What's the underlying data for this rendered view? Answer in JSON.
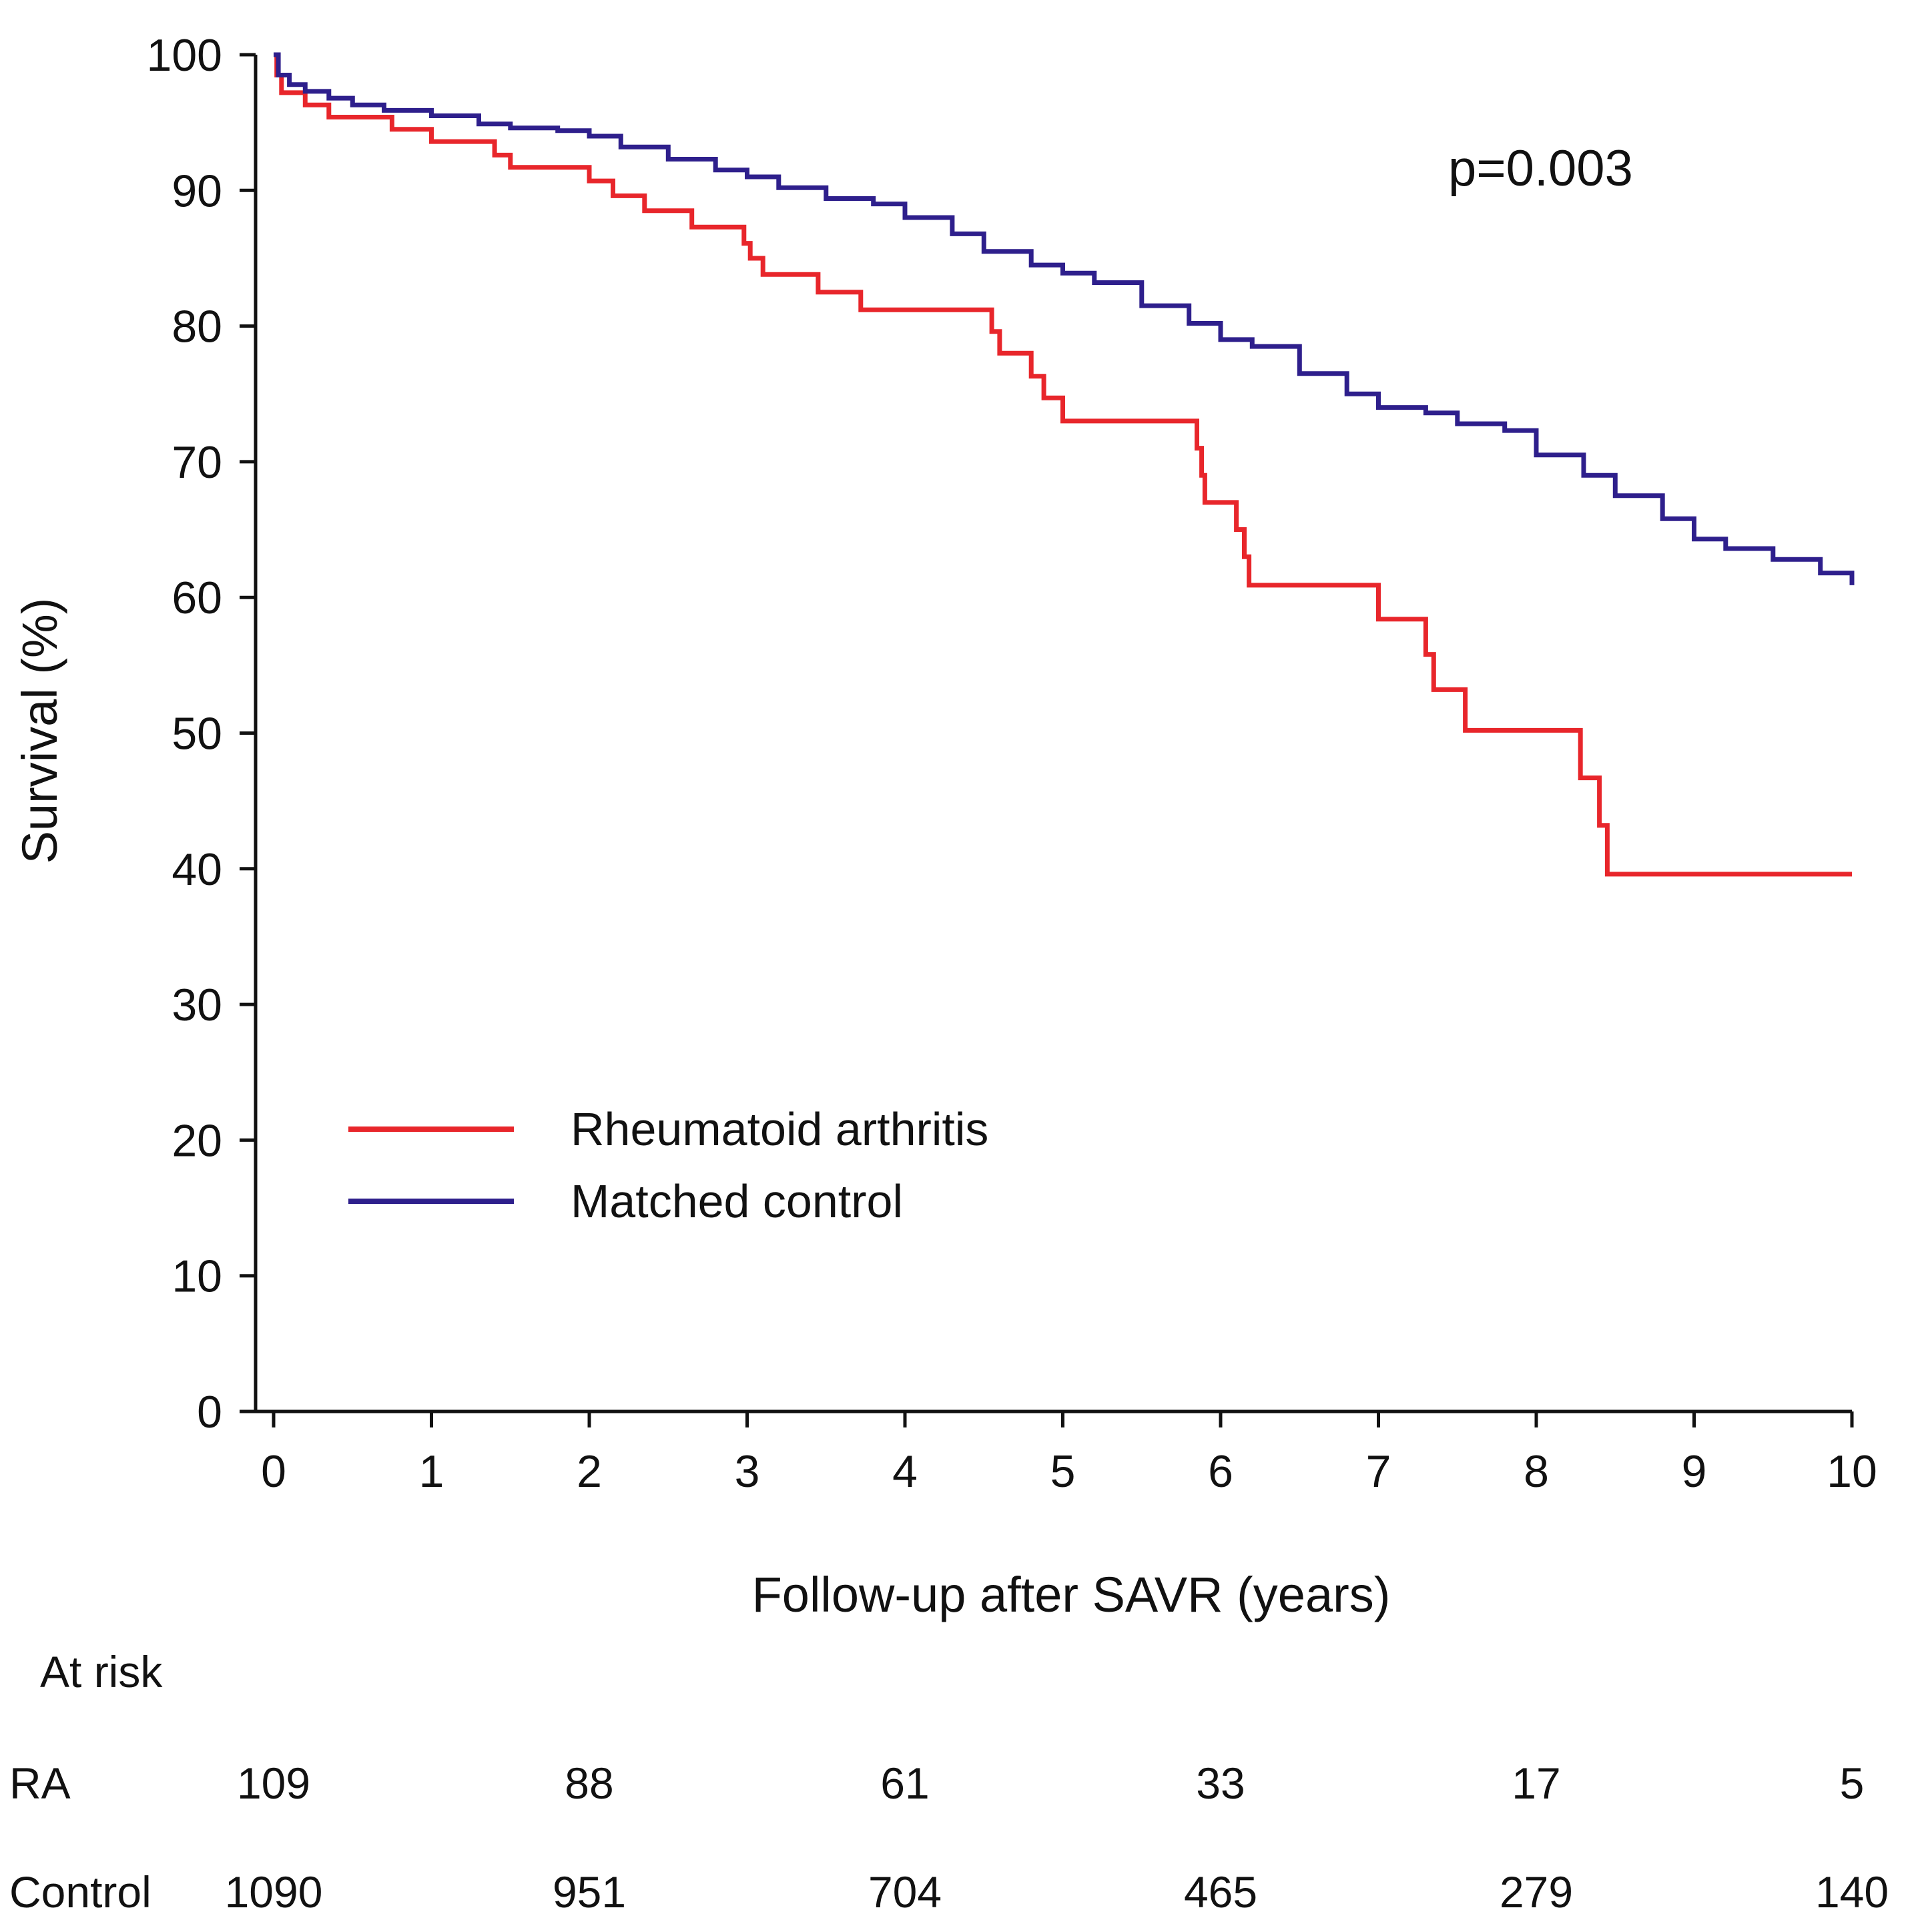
{
  "chart_data": {
    "type": "line",
    "subtype": "kaplan-meier-step",
    "title": "",
    "xlabel": "Follow-up after SAVR (years)",
    "ylabel": "Survival (%)",
    "xlim": [
      0,
      10
    ],
    "ylim": [
      0,
      100
    ],
    "x_ticks": [
      0,
      1,
      2,
      3,
      4,
      5,
      6,
      7,
      8,
      9,
      10
    ],
    "y_ticks": [
      0,
      10,
      20,
      30,
      40,
      50,
      60,
      70,
      80,
      90,
      100
    ],
    "grid": false,
    "legend_position": "lower-left",
    "annotations": [
      {
        "text": "p=0.003"
      }
    ],
    "series": [
      {
        "name": "Rheumatoid arthritis",
        "color": "#e8262b",
        "x": [
          0,
          0.02,
          0.05,
          0.2,
          0.35,
          0.75,
          1.0,
          1.4,
          1.5,
          2.0,
          2.15,
          2.35,
          2.65,
          2.98,
          3.02,
          3.1,
          3.45,
          3.72,
          4.55,
          4.6,
          4.8,
          4.88,
          5.0,
          5.85,
          5.88,
          5.9,
          6.1,
          6.15,
          6.18,
          7.0,
          7.3,
          7.35,
          7.55,
          8.28,
          8.4,
          8.45,
          10.0
        ],
        "values": [
          100,
          98.5,
          97.2,
          96.3,
          95.4,
          94.5,
          93.6,
          92.6,
          91.7,
          90.7,
          89.6,
          88.5,
          87.3,
          86.1,
          85.0,
          83.8,
          82.5,
          81.2,
          79.6,
          78.0,
          76.3,
          74.7,
          73.0,
          71.0,
          69.0,
          67.0,
          65.0,
          63.0,
          60.9,
          58.4,
          55.8,
          53.2,
          50.2,
          46.7,
          43.2,
          39.6,
          39.6
        ]
      },
      {
        "name": "Matched control",
        "color": "#2e1f8c",
        "x": [
          0,
          0.03,
          0.1,
          0.2,
          0.35,
          0.5,
          0.7,
          1.0,
          1.3,
          1.5,
          1.8,
          2.0,
          2.2,
          2.5,
          2.8,
          3.0,
          3.2,
          3.5,
          3.8,
          4.0,
          4.3,
          4.5,
          4.8,
          5.0,
          5.2,
          5.5,
          5.8,
          6.0,
          6.2,
          6.5,
          6.8,
          7.0,
          7.3,
          7.5,
          7.8,
          8.0,
          8.3,
          8.5,
          8.8,
          9.0,
          9.2,
          9.5,
          9.8,
          10.0
        ],
        "values": [
          100,
          98.5,
          97.8,
          97.3,
          96.8,
          96.3,
          95.9,
          95.5,
          94.9,
          94.6,
          94.4,
          94.0,
          93.2,
          92.3,
          91.5,
          91.0,
          90.2,
          89.4,
          89.0,
          88.0,
          86.8,
          85.5,
          84.5,
          83.9,
          83.2,
          81.5,
          80.2,
          79.0,
          78.5,
          76.5,
          75.0,
          74.0,
          73.6,
          72.8,
          72.3,
          70.5,
          69.0,
          67.5,
          65.8,
          64.3,
          63.6,
          62.8,
          61.8,
          60.9
        ]
      }
    ],
    "at_risk": {
      "heading": "At risk",
      "times": [
        0,
        2,
        4,
        6,
        8,
        10
      ],
      "rows": [
        {
          "label": "RA",
          "counts": [
            "109",
            "88",
            "61",
            "33",
            "17",
            "5"
          ]
        },
        {
          "label": "Control",
          "counts": [
            "1090",
            "951",
            "704",
            "465",
            "279",
            "140"
          ]
        }
      ]
    }
  }
}
